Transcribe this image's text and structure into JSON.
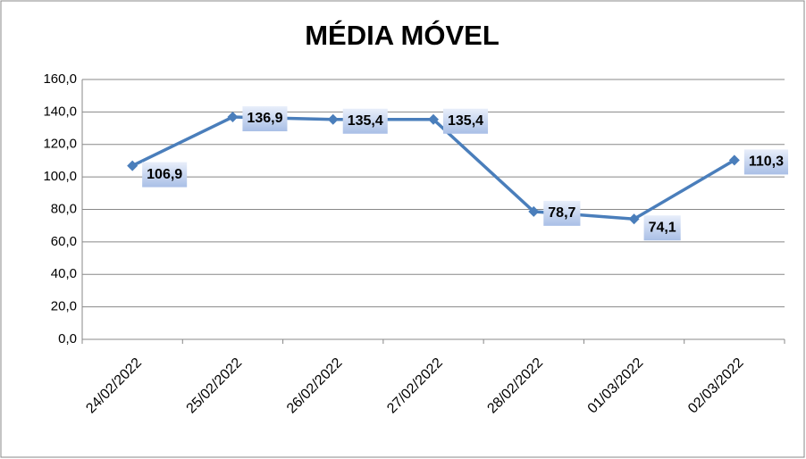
{
  "chart_data": {
    "type": "line",
    "title": "MÉDIA MÓVEL",
    "categories": [
      "24/02/2022",
      "25/02/2022",
      "26/02/2022",
      "27/02/2022",
      "28/02/2022",
      "01/03/2022",
      "02/03/2022"
    ],
    "series": [
      {
        "name": "MÉDIA MÓVEL",
        "color": "#4a7ebb",
        "values": [
          106.9,
          136.9,
          135.4,
          135.4,
          78.7,
          74.1,
          110.3
        ],
        "value_labels": [
          "106,9",
          "136,9",
          "135,4",
          "135,4",
          "78,7",
          "74,1",
          "110,3"
        ]
      }
    ],
    "ylim": [
      0,
      160
    ],
    "yticks": [
      {
        "value": 0,
        "label": "0,0"
      },
      {
        "value": 20,
        "label": "20,0"
      },
      {
        "value": 40,
        "label": "40,0"
      },
      {
        "value": 60,
        "label": "60,0"
      },
      {
        "value": 80,
        "label": "80,0"
      },
      {
        "value": 100,
        "label": "100,0"
      },
      {
        "value": 120,
        "label": "120,0"
      },
      {
        "value": 140,
        "label": "140,0"
      },
      {
        "value": 160,
        "label": "160,0"
      }
    ],
    "grid": true
  }
}
